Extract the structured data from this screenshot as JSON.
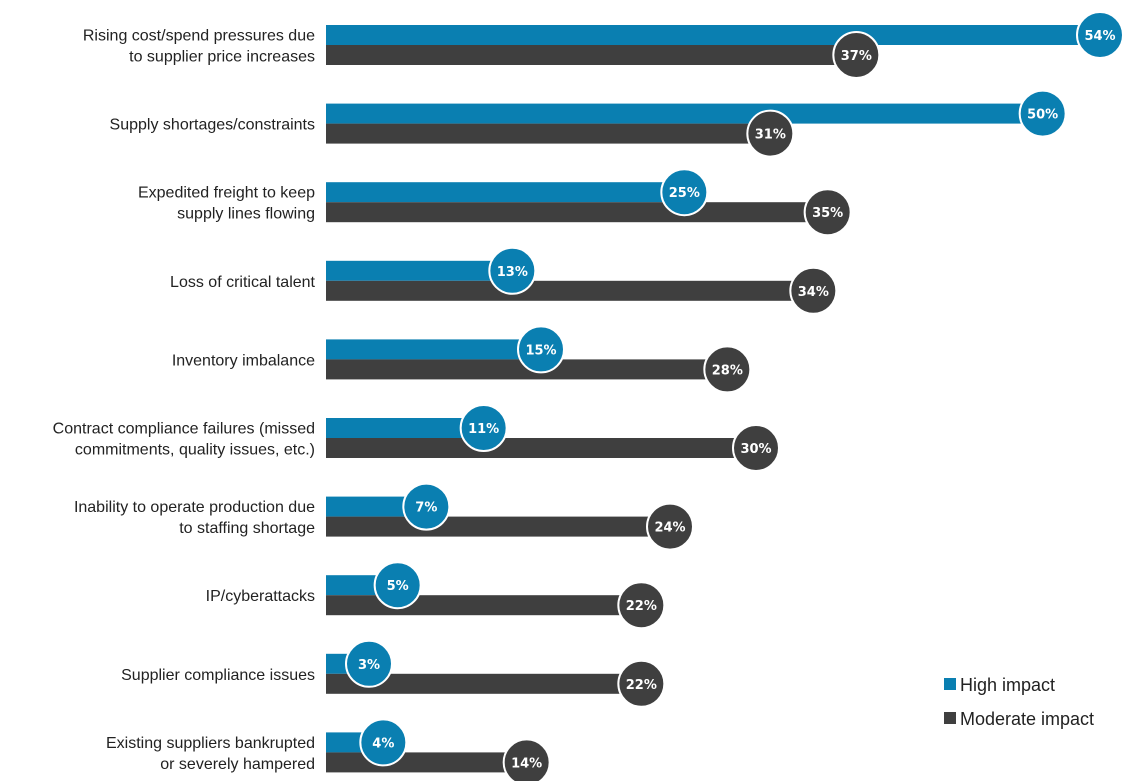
{
  "chart_data": {
    "type": "bar",
    "orientation": "horizontal",
    "categories": [
      [
        "Rising cost/spend pressures due",
        "to supplier price increases"
      ],
      [
        "Supply shortages/constraints"
      ],
      [
        "Expedited freight to keep",
        "supply lines flowing"
      ],
      [
        "Loss of critical talent"
      ],
      [
        "Inventory imbalance"
      ],
      [
        "Contract compliance failures (missed",
        "commitments, quality issues, etc.)"
      ],
      [
        "Inability to operate production due",
        "to staffing shortage"
      ],
      [
        "IP/cyberattacks"
      ],
      [
        "Supplier compliance issues"
      ],
      [
        "Existing suppliers bankrupted",
        "or severely hampered"
      ]
    ],
    "series": [
      {
        "name": "High impact",
        "color": "#0a7fb1",
        "values": [
          54,
          50,
          25,
          13,
          15,
          11,
          7,
          5,
          3,
          4
        ],
        "labels": [
          "54%",
          "50%",
          "25%",
          "13%",
          "15%",
          "11%",
          "7%",
          "5%",
          "3%",
          "4%"
        ]
      },
      {
        "name": "Moderate impact",
        "color": "#3f3f3f",
        "values": [
          37,
          31,
          35,
          34,
          28,
          30,
          24,
          22,
          22,
          14
        ],
        "labels": [
          "37%",
          "31%",
          "35%",
          "34%",
          "28%",
          "30%",
          "24%",
          "22%",
          "22%",
          "14%"
        ]
      }
    ],
    "xlim": [
      0,
      54
    ],
    "grid": false,
    "legend_position": "bottom-right",
    "data_label_style": "circle at bar end"
  }
}
